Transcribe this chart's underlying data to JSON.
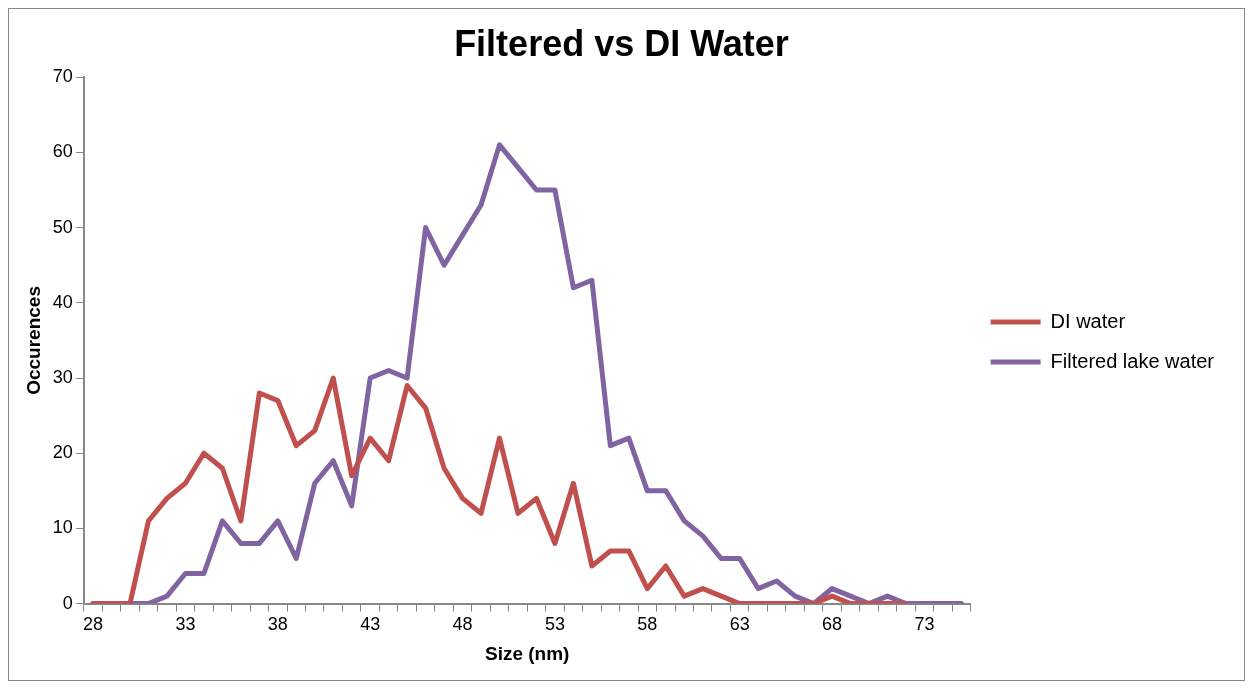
{
  "chart_data": {
    "type": "line",
    "title": "Filtered vs DI Water",
    "xlabel": "Size (nm)",
    "ylabel": "Occurences",
    "categories": [
      "28",
      null,
      null,
      null,
      null,
      "33",
      null,
      null,
      null,
      null,
      "38",
      null,
      null,
      null,
      null,
      "43",
      null,
      null,
      null,
      null,
      "48",
      null,
      null,
      null,
      null,
      "53",
      null,
      null,
      null,
      null,
      "58",
      null,
      null,
      null,
      null,
      "63",
      null,
      null,
      null,
      null,
      "68",
      null,
      null,
      null,
      null,
      "73",
      null,
      null
    ],
    "series": [
      {
        "name": "DI water",
        "color": "#c0504d",
        "values": [
          0,
          0,
          0,
          11,
          14,
          16,
          20,
          18,
          11,
          28,
          27,
          21,
          23,
          30,
          17,
          22,
          19,
          29,
          26,
          18,
          14,
          12,
          22,
          12,
          14,
          8,
          16,
          5,
          7,
          7,
          2,
          5,
          1,
          2,
          1,
          0,
          0,
          0,
          0,
          0,
          1,
          0,
          0,
          0,
          0,
          null,
          null,
          null
        ]
      },
      {
        "name": "Filtered lake water",
        "color": "#8064a2",
        "values": [
          0,
          0,
          0,
          0,
          1,
          4,
          4,
          11,
          8,
          8,
          11,
          6,
          16,
          19,
          13,
          30,
          31,
          30,
          50,
          45,
          49,
          53,
          61,
          58,
          55,
          55,
          42,
          43,
          21,
          22,
          15,
          15,
          11,
          9,
          6,
          6,
          2,
          3,
          1,
          0,
          2,
          1,
          0,
          1,
          0,
          0,
          0,
          0
        ]
      }
    ],
    "ylim": [
      0,
      70
    ],
    "yticks": [
      0,
      10,
      20,
      30,
      40,
      50,
      60,
      70
    ],
    "grid": false,
    "legend": "right",
    "marker": "none",
    "line_style": "solid"
  }
}
